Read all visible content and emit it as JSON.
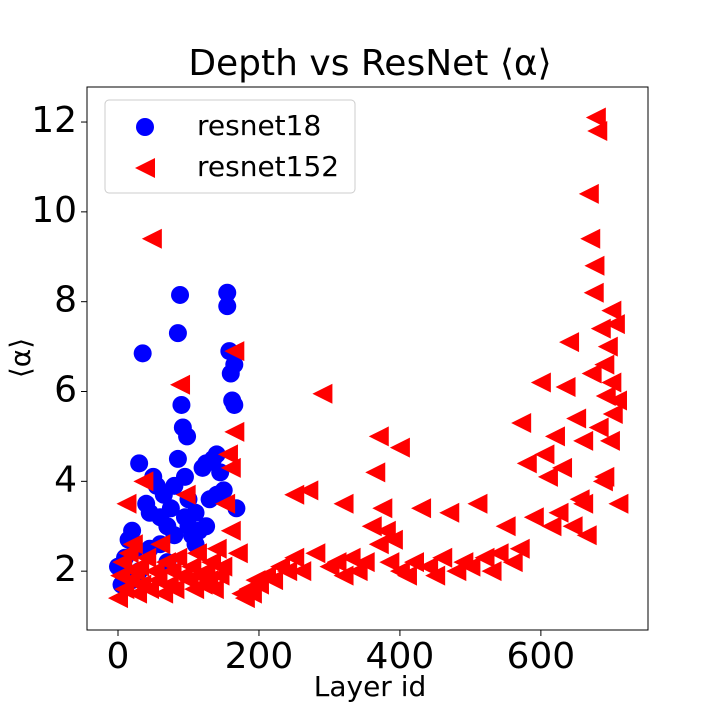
{
  "chart_data": {
    "type": "scatter",
    "title": "Depth vs ResNet ⟨α⟩",
    "x_label": "Layer id",
    "y_label": "⟨α⟩",
    "xlim": [
      -44,
      752
    ],
    "ylim": [
      0.69,
      12.78
    ],
    "xticks": [
      0,
      200,
      400,
      600
    ],
    "yticks": [
      2,
      4,
      6,
      8,
      10,
      12
    ],
    "legend": "upper left",
    "series": [
      {
        "name": "resnet18",
        "color": "#0000ff",
        "marker": "circle",
        "x": [
          0,
          5,
          10,
          15,
          20,
          25,
          30,
          35,
          40,
          45,
          50,
          55,
          60,
          65,
          70,
          75,
          80,
          85,
          85,
          88,
          90,
          92,
          95,
          98,
          100,
          105,
          110,
          115,
          120,
          125,
          130,
          135,
          140,
          145,
          150,
          155,
          155,
          158,
          160,
          162,
          165,
          168,
          60,
          70,
          80,
          100,
          110,
          125,
          140,
          45,
          30,
          20,
          165,
          95
        ],
        "values": [
          2.1,
          1.7,
          2.3,
          2.7,
          2.9,
          2.5,
          4.4,
          6.85,
          3.5,
          3.3,
          4.1,
          3.9,
          2.6,
          3.7,
          3.0,
          3.4,
          3.9,
          4.5,
          7.3,
          8.15,
          5.7,
          5.2,
          3.2,
          5.0,
          3.6,
          2.8,
          3.3,
          2.9,
          4.3,
          4.4,
          3.6,
          4.5,
          4.6,
          4.2,
          3.8,
          8.2,
          7.9,
          6.9,
          6.4,
          5.8,
          5.7,
          3.4,
          3.2,
          2.2,
          2.8,
          3.0,
          2.6,
          3.0,
          3.7,
          2.5,
          2.0,
          1.8,
          6.6,
          4.1
        ]
      },
      {
        "name": "resnet152",
        "color": "#ff0000",
        "marker": "triangle-left",
        "x": [
          0,
          3,
          6,
          9,
          12,
          15,
          18,
          21,
          24,
          27,
          30,
          33,
          36,
          40,
          44,
          48,
          52,
          56,
          60,
          64,
          68,
          72,
          76,
          80,
          84,
          88,
          92,
          96,
          100,
          104,
          108,
          112,
          116,
          120,
          124,
          128,
          132,
          136,
          140,
          144,
          148,
          152,
          156,
          160,
          160,
          165,
          165,
          170,
          175,
          180,
          185,
          190,
          195,
          200,
          210,
          220,
          230,
          240,
          250,
          250,
          260,
          270,
          280,
          290,
          300,
          310,
          320,
          320,
          330,
          340,
          350,
          360,
          365,
          370,
          370,
          375,
          380,
          385,
          390,
          400,
          400,
          410,
          420,
          430,
          440,
          450,
          460,
          470,
          480,
          490,
          500,
          510,
          520,
          530,
          540,
          550,
          560,
          570,
          572,
          580,
          590,
          600,
          605,
          610,
          615,
          620,
          625,
          630,
          635,
          640,
          645,
          650,
          655,
          660,
          665,
          668,
          670,
          672,
          675,
          678,
          680,
          682,
          685,
          688,
          690,
          692,
          695,
          698,
          700,
          702,
          705,
          708,
          710,
          700,
          690,
          676,
          660
        ],
        "values": [
          1.4,
          1.9,
          2.2,
          1.6,
          3.5,
          2.4,
          1.8,
          2.6,
          2.0,
          1.5,
          2.1,
          1.7,
          4.0,
          2.3,
          1.6,
          9.4,
          2.0,
          1.8,
          2.6,
          1.5,
          2.2,
          1.7,
          2.0,
          1.6,
          2.3,
          6.15,
          1.9,
          3.7,
          1.8,
          2.1,
          1.6,
          2.4,
          1.9,
          1.7,
          2.0,
          1.8,
          2.2,
          1.6,
          2.5,
          1.9,
          2.1,
          3.5,
          4.6,
          4.3,
          2.9,
          5.1,
          6.9,
          2.4,
          1.5,
          1.4,
          1.6,
          1.5,
          1.8,
          1.7,
          1.9,
          1.8,
          2.1,
          2.0,
          3.7,
          2.3,
          2.0,
          3.8,
          2.4,
          5.95,
          2.1,
          2.2,
          3.5,
          1.9,
          2.3,
          2.0,
          2.2,
          3.0,
          4.2,
          5.0,
          2.6,
          3.4,
          2.9,
          2.2,
          2.7,
          4.75,
          2.0,
          1.9,
          2.2,
          3.4,
          2.1,
          1.9,
          2.3,
          3.3,
          2.0,
          2.2,
          2.1,
          3.5,
          2.3,
          2.0,
          2.4,
          3.0,
          2.2,
          2.5,
          5.3,
          4.4,
          3.2,
          6.2,
          4.6,
          4.1,
          3.0,
          5.0,
          3.3,
          4.3,
          6.1,
          7.1,
          3.0,
          5.4,
          3.6,
          4.9,
          2.8,
          10.4,
          9.4,
          6.4,
          8.2,
          12.1,
          11.8,
          5.2,
          7.4,
          4.0,
          6.6,
          5.9,
          7.0,
          4.9,
          6.2,
          5.5,
          7.5,
          5.8,
          3.5,
          7.8,
          4.1,
          8.8,
          3.5
        ]
      }
    ]
  }
}
